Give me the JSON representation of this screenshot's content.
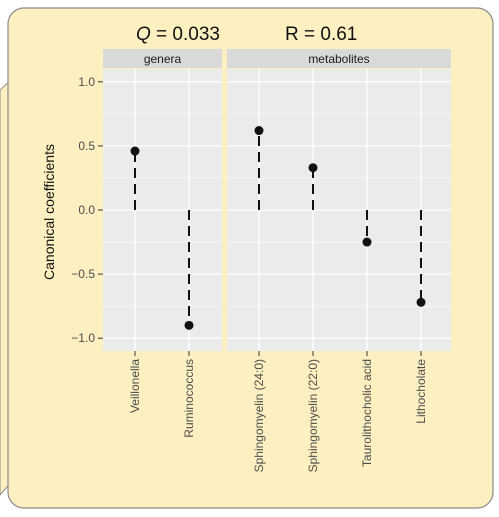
{
  "header": {
    "q_italic": "Q",
    "q_value": " = 0.033",
    "r_label": "R = 0.61"
  },
  "colors": {
    "callout_fill": "#fcf0c0",
    "callout_stroke": "#8a8a8a",
    "panel_bg": "#ebebeb",
    "strip_bg": "#d9d9d9",
    "grid": "#ffffff",
    "marks": "#111111"
  },
  "chart_data": {
    "type": "scatter",
    "ylabel": "Canonical coefficients",
    "xlabel": "",
    "ylim": [
      -1.1,
      1.1
    ],
    "yticks": [
      -1.0,
      -0.5,
      0.0,
      0.5,
      1.0
    ],
    "ytick_labels": [
      "−1.0",
      "−0.5",
      "0.0",
      "0.5",
      "1.0"
    ],
    "facets": [
      {
        "label": "genera",
        "categories": [
          "Veillonella",
          "Ruminococcus"
        ],
        "values": [
          0.46,
          -0.9
        ]
      },
      {
        "label": "metabolites",
        "categories": [
          "Sphingomyelin (24:0)",
          "Sphingomyelin (22:0)",
          "Taurolithocholic acid",
          "Lithocholate"
        ],
        "values": [
          0.62,
          0.33,
          -0.25,
          -0.72
        ]
      }
    ],
    "segment_style": "dashed line from 0 to value",
    "grid": true,
    "legend": "none"
  }
}
